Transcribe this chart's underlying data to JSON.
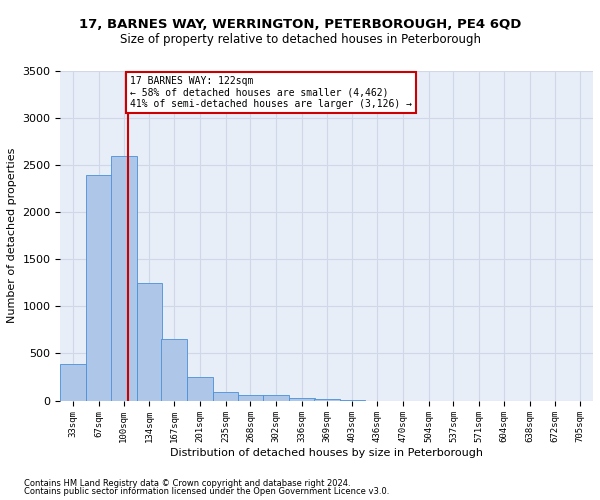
{
  "title1": "17, BARNES WAY, WERRINGTON, PETERBOROUGH, PE4 6QD",
  "title2": "Size of property relative to detached houses in Peterborough",
  "xlabel": "Distribution of detached houses by size in Peterborough",
  "ylabel": "Number of detached properties",
  "footer1": "Contains HM Land Registry data © Crown copyright and database right 2024.",
  "footer2": "Contains public sector information licensed under the Open Government Licence v3.0.",
  "annotation_title": "17 BARNES WAY: 122sqm",
  "annotation_line1": "← 58% of detached houses are smaller (4,462)",
  "annotation_line2": "41% of semi-detached houses are larger (3,126) →",
  "bin_labels": [
    "33sqm",
    "67sqm",
    "100sqm",
    "134sqm",
    "167sqm",
    "201sqm",
    "235sqm",
    "268sqm",
    "302sqm",
    "336sqm",
    "369sqm",
    "403sqm",
    "436sqm",
    "470sqm",
    "504sqm",
    "537sqm",
    "571sqm",
    "604sqm",
    "638sqm",
    "672sqm",
    "705sqm"
  ],
  "bin_edges": [
    33,
    67,
    100,
    134,
    167,
    201,
    235,
    268,
    302,
    336,
    369,
    403,
    436,
    470,
    504,
    537,
    571,
    604,
    638,
    672,
    705
  ],
  "bar_heights": [
    390,
    2390,
    2600,
    1250,
    650,
    250,
    90,
    55,
    55,
    30,
    20,
    10,
    0,
    0,
    0,
    0,
    0,
    0,
    0,
    0
  ],
  "bar_color": "#aec6e8",
  "bar_edge_color": "#4a90d9",
  "property_size": 122,
  "vline_color": "#cc0000",
  "ylim": [
    0,
    3500
  ],
  "yticks": [
    0,
    500,
    1000,
    1500,
    2000,
    2500,
    3000,
    3500
  ],
  "grid_color": "#d0d8e8",
  "background_color": "#e8eef8",
  "annotation_box_color": "#ffffff",
  "annotation_box_edge": "#cc0000",
  "figsize": [
    6.0,
    5.0
  ],
  "dpi": 100
}
